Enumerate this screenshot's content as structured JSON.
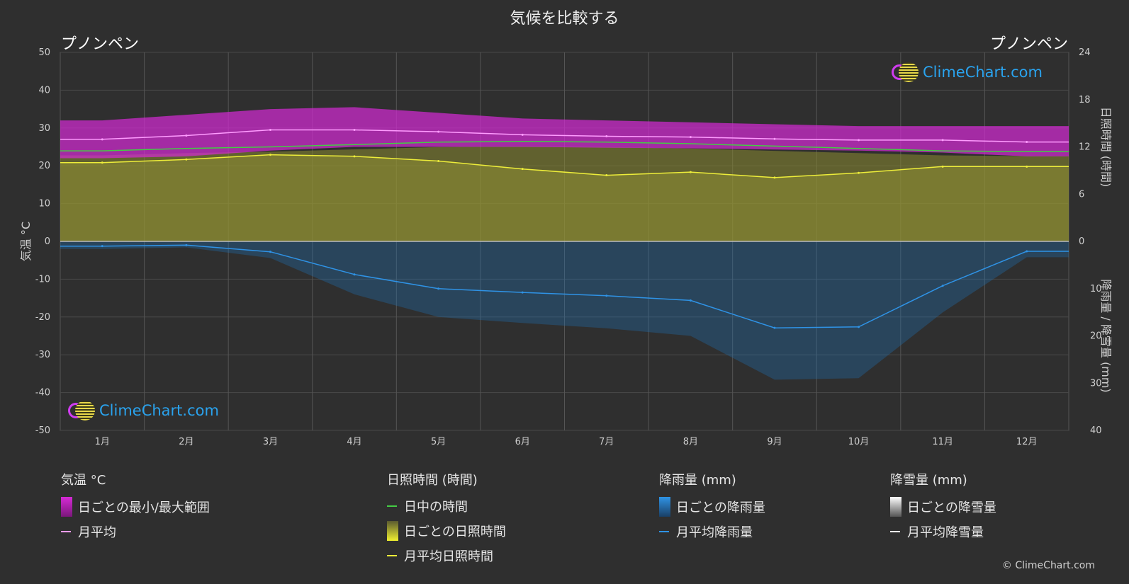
{
  "title": "気候を比較する",
  "location_left": "プノンペン",
  "location_right": "プノンペン",
  "logo_text": "ClimeChart.com",
  "copyright": "© ClimeChart.com",
  "axes": {
    "left_label": "気温 °C",
    "right_top_label": "日照時間 (時間)",
    "right_bottom_label": "降雨量 / 降雪量 (mm)"
  },
  "legend": {
    "temperature": {
      "heading": "気温 °C",
      "items": [
        "日ごとの最小/最大範囲",
        "月平均"
      ]
    },
    "sunshine": {
      "heading": "日照時間 (時間)",
      "items": [
        "日中の時間",
        "日ごとの日照時間",
        "月平均日照時間"
      ]
    },
    "rain": {
      "heading": "降雨量 (mm)",
      "items": [
        "日ごとの降雨量",
        "月平均降雨量"
      ]
    },
    "snow": {
      "heading": "降雪量 (mm)",
      "items": [
        "日ごとの降雪量",
        "月平均降雪量"
      ]
    }
  },
  "colors": {
    "background": "#2f2f2f",
    "temp_range": "#d62ad6",
    "temp_mean": "#ff9cff",
    "daylight": "#44cc44",
    "sunshine_fill": "#8a8a30",
    "sunshine_mean": "#eded3a",
    "rain": "#1f6fb3",
    "rain_mean": "#2f93e6",
    "snow_mean": "#ffffff"
  },
  "chart_data": {
    "type": "line",
    "categories": [
      "1月",
      "2月",
      "3月",
      "4月",
      "5月",
      "6月",
      "7月",
      "8月",
      "9月",
      "10月",
      "11月",
      "12月"
    ],
    "temperature_axis": {
      "label": "気温 °C",
      "ylim": [
        -50,
        50
      ],
      "ticks": [
        50,
        40,
        30,
        20,
        10,
        0,
        -10,
        -20,
        -30,
        -40,
        -50
      ]
    },
    "sunshine_axis": {
      "label": "日照時間 (時間)",
      "ylim": [
        0,
        24
      ],
      "ticks": [
        24,
        18,
        12,
        6,
        0
      ]
    },
    "precip_axis": {
      "label": "降雨量 / 降雪量 (mm)",
      "ylim": [
        0,
        40
      ],
      "ticks": [
        0,
        10,
        20,
        30,
        40
      ]
    },
    "series": [
      {
        "name": "月平均",
        "axis": "temperature",
        "values": [
          27,
          28,
          29.5,
          29.5,
          29,
          28.2,
          27.8,
          27.6,
          27.1,
          26.8,
          26.8,
          26.3
        ]
      },
      {
        "name": "日ごとの最小/最大範囲 (max)",
        "axis": "temperature",
        "values": [
          32,
          33.5,
          35,
          35.5,
          34,
          32.5,
          32,
          31.5,
          31,
          30.5,
          30.5,
          30.5
        ]
      },
      {
        "name": "日ごとの最小/最大範囲 (min)",
        "axis": "temperature",
        "values": [
          22,
          22.5,
          24,
          25,
          25,
          25,
          24.8,
          24.6,
          24.3,
          24,
          23.5,
          22.5
        ]
      },
      {
        "name": "日中の時間",
        "axis": "sunshine",
        "values": [
          11.5,
          11.8,
          12,
          12.3,
          12.6,
          12.7,
          12.6,
          12.4,
          12.1,
          11.8,
          11.5,
          11.4
        ]
      },
      {
        "name": "月平均日照時間",
        "axis": "sunshine",
        "values": [
          10,
          10.4,
          11,
          10.8,
          10.2,
          9.2,
          8.4,
          8.8,
          8.1,
          8.7,
          9.5,
          9.5
        ]
      },
      {
        "name": "月平均降雨量",
        "axis": "precip",
        "values": [
          1,
          0.8,
          2.2,
          7,
          10,
          10.8,
          11.5,
          12.5,
          18.3,
          18.1,
          9.4,
          2.1
        ]
      }
    ]
  }
}
